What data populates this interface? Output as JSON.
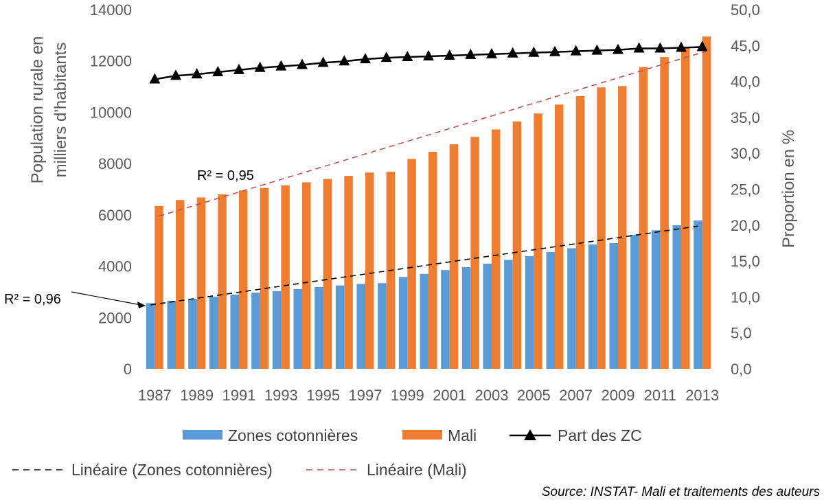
{
  "chart_data": {
    "type": "bar",
    "title": "",
    "xlabel": "",
    "ylabel": "Population rurale en milliers d'habitants",
    "ylabel_line1": "Population rurale en",
    "ylabel_line2": "milliers d'habitants",
    "y2label": "Proportion en %",
    "ylim": [
      0,
      14000
    ],
    "y2lim": [
      0,
      50
    ],
    "y_ticks": [
      "0",
      "2000",
      "4000",
      "6000",
      "8000",
      "10000",
      "12000",
      "14000"
    ],
    "y2_ticks": [
      "0,0",
      "5,0",
      "10,0",
      "15,0",
      "20,0",
      "25,0",
      "30,0",
      "35,0",
      "40,0",
      "45,0",
      "50,0"
    ],
    "categories": [
      "1987",
      "1988",
      "1989",
      "1990",
      "1991",
      "1992",
      "1993",
      "1994",
      "1995",
      "1996",
      "1997",
      "1998",
      "1999",
      "2000",
      "2001",
      "2002",
      "2003",
      "2004",
      "2005",
      "2006",
      "2007",
      "2008",
      "2009",
      "2010",
      "2011",
      "2012",
      "2013"
    ],
    "x_tick_labels": [
      "1987",
      "1989",
      "1991",
      "1993",
      "1995",
      "1997",
      "1999",
      "2001",
      "2003",
      "2005",
      "2007",
      "2009",
      "2011",
      "2013"
    ],
    "series": [
      {
        "name": "Zones cotonnières",
        "type": "bar",
        "axis": "left",
        "color": "#5B9BD5",
        "values": [
          2560,
          2650,
          2730,
          2810,
          2890,
          2970,
          3030,
          3110,
          3190,
          3250,
          3310,
          3340,
          3580,
          3700,
          3850,
          3960,
          4100,
          4250,
          4390,
          4550,
          4700,
          4850,
          4900,
          5220,
          5400,
          5600,
          5780
        ]
      },
      {
        "name": "Mali",
        "type": "bar",
        "axis": "left",
        "color": "#ED7D31",
        "values": [
          6350,
          6580,
          6680,
          6800,
          6950,
          7050,
          7150,
          7270,
          7400,
          7520,
          7650,
          7680,
          8180,
          8460,
          8750,
          9040,
          9330,
          9640,
          9950,
          10300,
          10630,
          10970,
          11020,
          11760,
          12150,
          12530,
          12950
        ]
      },
      {
        "name": "Part des ZC",
        "type": "line",
        "axis": "right",
        "color": "#000000",
        "marker": "triangle",
        "values": [
          40.3,
          40.8,
          41.0,
          41.3,
          41.6,
          41.9,
          42.1,
          42.3,
          42.6,
          42.8,
          43.1,
          43.3,
          43.4,
          43.5,
          43.6,
          43.7,
          43.8,
          43.9,
          44.0,
          44.1,
          44.2,
          44.3,
          44.4,
          44.6,
          44.6,
          44.7,
          44.8
        ]
      }
    ],
    "trendlines": [
      {
        "name": "Linéaire (Zones cotonnières)",
        "series": "Zones cotonnières",
        "color": "#000000",
        "style": "dashed",
        "start": 2490,
        "end": 5560,
        "r2_label": "R² = 0,96"
      },
      {
        "name": "Linéaire (Mali)",
        "series": "Mali",
        "color": "#C0504D",
        "style": "dashed",
        "start": 5950,
        "end": 12380,
        "r2_label": "R² = 0,95"
      }
    ],
    "legend": {
      "placement": "bottom",
      "row1": [
        "Zones cotonnières",
        "Mali",
        "Part des ZC"
      ],
      "row2": [
        "Linéaire (Zones cotonnières)",
        "Linéaire (Mali)"
      ]
    },
    "source": "Source: INSTAT- Mali et traitements des auteurs",
    "grid": false
  }
}
